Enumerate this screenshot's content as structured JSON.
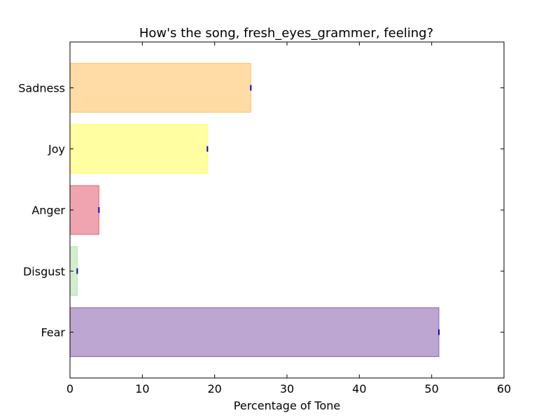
{
  "chart_data": {
    "type": "bar",
    "orientation": "horizontal",
    "title": "How's the song, fresh_eyes_grammer, feeling?",
    "xlabel": "Percentage of Tone",
    "ylabel": "",
    "xlim": [
      0,
      60
    ],
    "xticks": [
      0,
      10,
      20,
      30,
      40,
      50,
      60
    ],
    "grid": false,
    "categories": [
      "Fear",
      "Disgust",
      "Anger",
      "Joy",
      "Sadness"
    ],
    "values": [
      51,
      1,
      4,
      19,
      25
    ],
    "colors": [
      "#7b4ea3",
      "#a3e0a0",
      "#e04a62",
      "#ffff44",
      "#ffb84d"
    ],
    "edge_colors": [
      "#7b4ea3",
      "#a3e0a0",
      "#e04a62",
      "#ffff44",
      "#ffb84d"
    ],
    "errorbar_color": "#0000cc"
  }
}
